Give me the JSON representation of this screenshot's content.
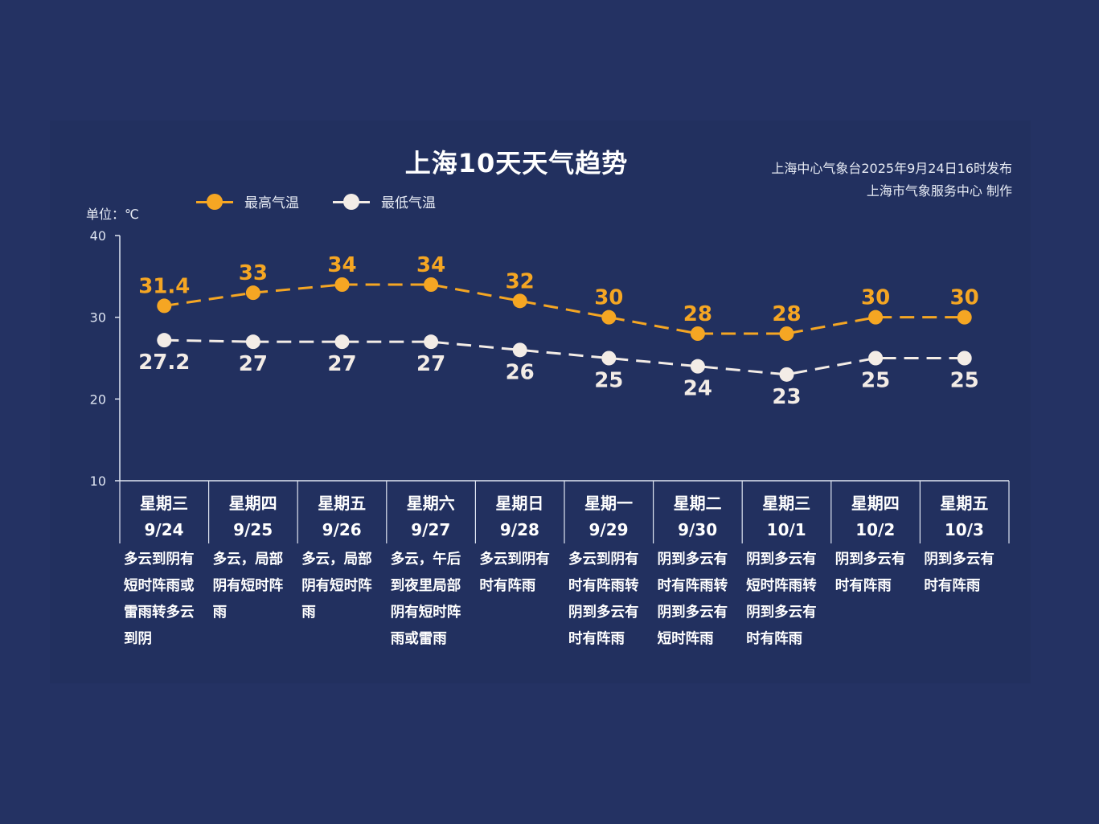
{
  "title": "上海10天天气趋势",
  "source_line1": "上海中心气象台2025年9月24日16时发布",
  "source_line2": "上海市气象服务中心 制作",
  "unit_label": "单位：℃",
  "colors": {
    "background": "#243263",
    "high": "#f5a623",
    "low": "#f3ece6",
    "axis": "#dfe5f2"
  },
  "legend": [
    {
      "name": "最高气温",
      "color": "#f5a623"
    },
    {
      "name": "最低气温",
      "color": "#f3ece6"
    }
  ],
  "chart_data": {
    "type": "line",
    "title": "上海10天天气趋势",
    "ylabel": "单位：℃",
    "ylim": [
      10,
      40
    ],
    "yticks": [
      10,
      20,
      30,
      40
    ],
    "legend_position": "top-left",
    "categories": [
      "9/24",
      "9/25",
      "9/26",
      "9/27",
      "9/28",
      "9/29",
      "9/30",
      "10/1",
      "10/2",
      "10/3"
    ],
    "weekdays": [
      "星期三",
      "星期四",
      "星期五",
      "星期六",
      "星期日",
      "星期一",
      "星期二",
      "星期三",
      "星期四",
      "星期五"
    ],
    "series": [
      {
        "name": "最高气温",
        "values": [
          31.4,
          33,
          34,
          34,
          32,
          30,
          28,
          28,
          30,
          30
        ],
        "labels": [
          "31.4",
          "33",
          "34",
          "34",
          "32",
          "30",
          "28",
          "28",
          "30",
          "30"
        ]
      },
      {
        "name": "最低气温",
        "values": [
          27.2,
          27,
          27,
          27,
          26,
          25,
          24,
          23,
          25,
          25
        ],
        "labels": [
          "27.2",
          "27",
          "27",
          "27",
          "26",
          "25",
          "24",
          "23",
          "25",
          "25"
        ]
      }
    ],
    "descriptions": [
      "多云到阴有短时阵雨或雷雨转多云到阴",
      "多云，局部阴有短时阵雨",
      "多云，局部阴有短时阵雨",
      "多云，午后到夜里局部阴有短时阵雨或雷雨",
      "多云到阴有时有阵雨",
      "多云到阴有时有阵雨转阴到多云有时有阵雨",
      "阴到多云有时有阵雨转阴到多云有短时阵雨",
      "阴到多云有短时阵雨转阴到多云有时有阵雨",
      "阴到多云有时有阵雨",
      "阴到多云有时有阵雨"
    ]
  }
}
